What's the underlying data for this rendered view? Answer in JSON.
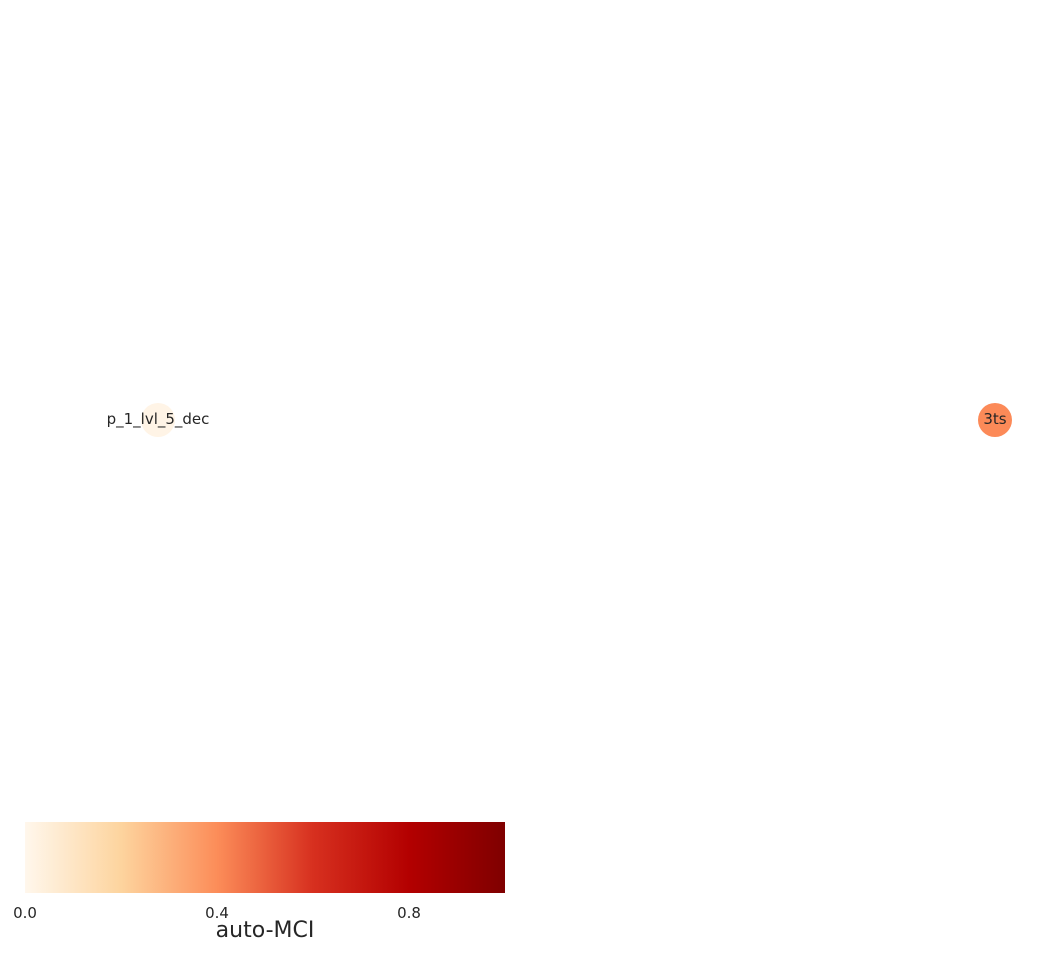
{
  "nodes": [
    {
      "label": "p_1_lvl_5_dec",
      "value": 0.02,
      "color": "#fff4e6"
    },
    {
      "label": "3ts",
      "value": 0.5,
      "color": "#fc8a58"
    }
  ],
  "colorbar": {
    "label": "auto-MCI",
    "ticks": [
      "0.0",
      "0.4",
      "0.8"
    ],
    "colormap": "OrRd",
    "range": [
      0.0,
      1.0
    ],
    "stops": [
      "#fff7ec",
      "#fdd49e",
      "#fc8d59",
      "#d7301f",
      "#b30000",
      "#7f0000"
    ]
  }
}
